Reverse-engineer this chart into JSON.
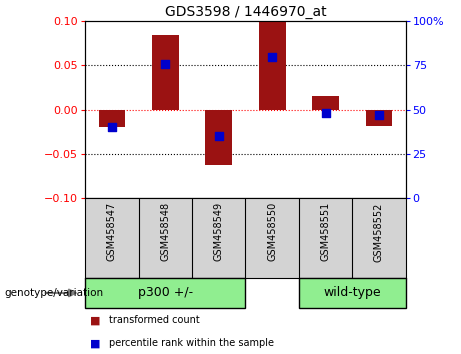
{
  "title": "GDS3598 / 1446970_at",
  "samples": [
    "GSM458547",
    "GSM458548",
    "GSM458549",
    "GSM458550",
    "GSM458551",
    "GSM458552"
  ],
  "red_bars": [
    -0.02,
    0.085,
    -0.063,
    0.1,
    0.015,
    -0.018
  ],
  "blue_squares_pct": [
    40,
    76,
    35,
    80,
    48,
    47
  ],
  "ylim_left": [
    -0.1,
    0.1
  ],
  "ylim_right": [
    0,
    100
  ],
  "yticks_left": [
    -0.1,
    -0.05,
    0,
    0.05,
    0.1
  ],
  "yticks_right": [
    0,
    25,
    50,
    75,
    100
  ],
  "ytick_labels_right": [
    "0",
    "25",
    "50",
    "75",
    "100%"
  ],
  "group_p300_label": "p300 +/-",
  "group_wt_label": "wild-type",
  "group_color": "#90EE90",
  "group_label_text": "genotype/variation",
  "bar_color": "#9B1212",
  "blue_color": "#0000CC",
  "legend_red_label": "transformed count",
  "legend_blue_label": "percentile rank within the sample",
  "bar_width": 0.5,
  "blue_square_size": 30,
  "sample_box_color": "#D3D3D3",
  "bg_color": "#FFFFFF",
  "hline_0_color": "red",
  "hline_other_color": "black"
}
